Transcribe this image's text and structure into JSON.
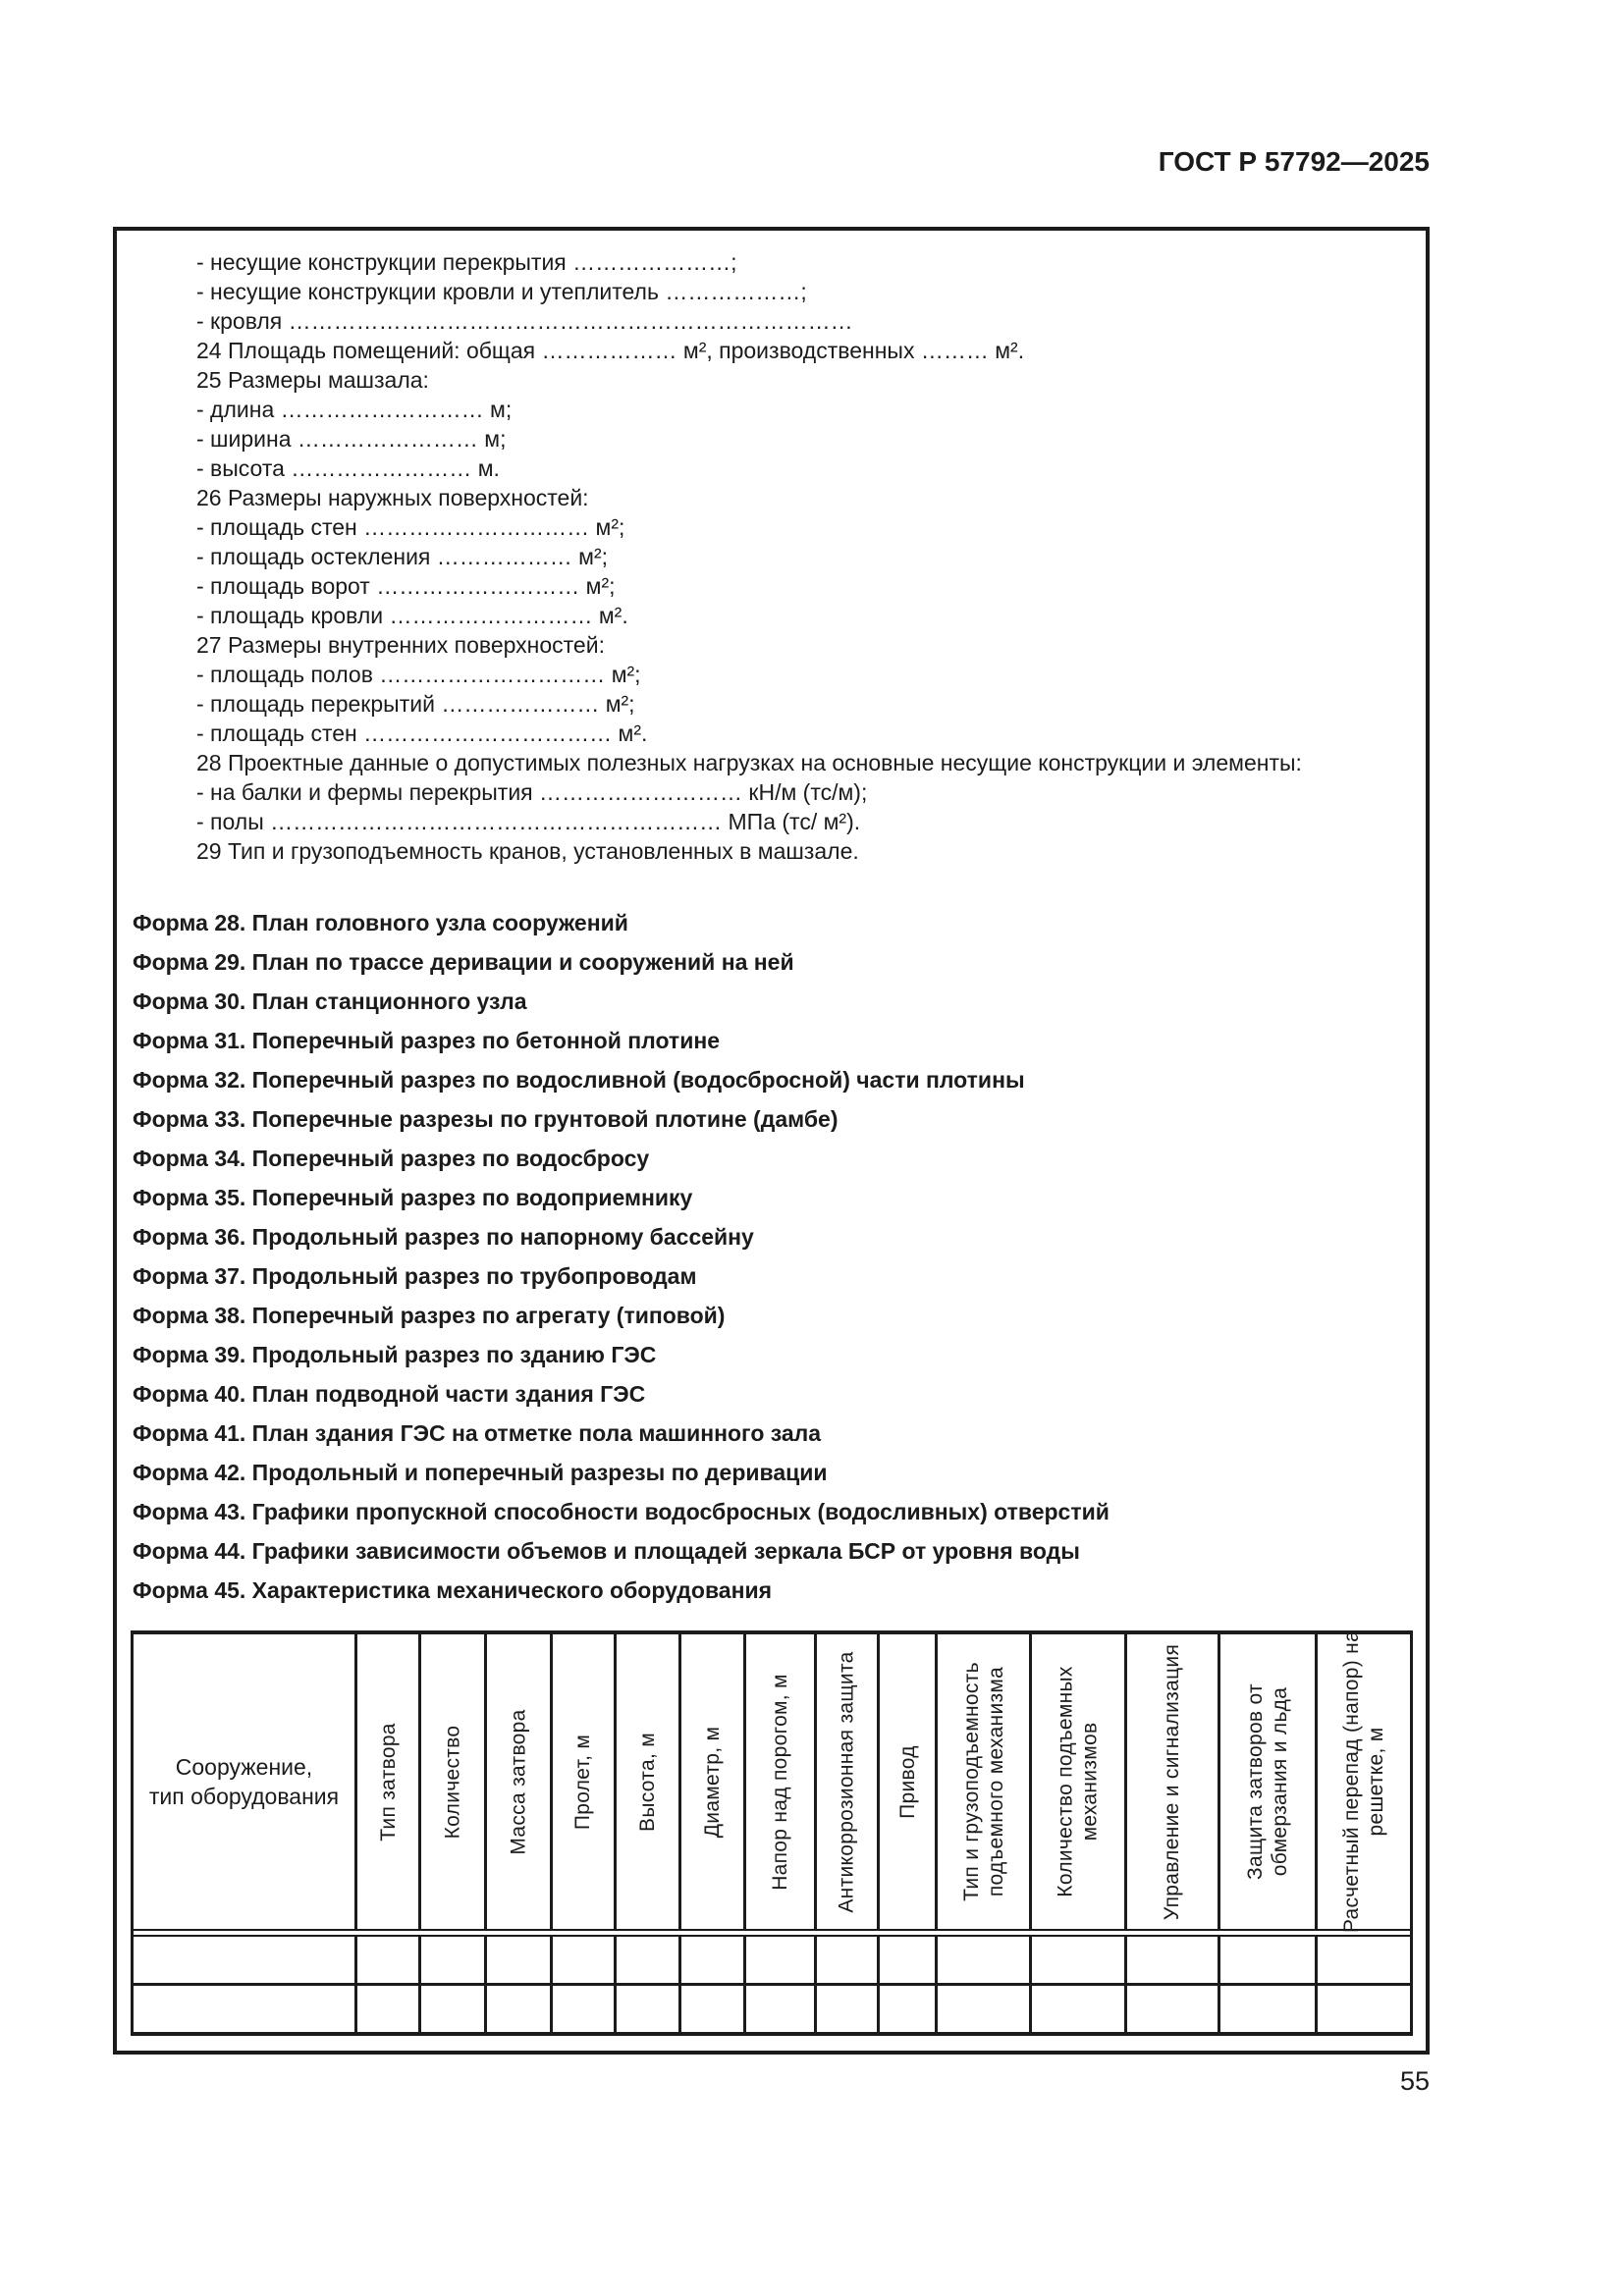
{
  "header": {
    "doc_code": "ГОСТ Р 57792—2025"
  },
  "footer": {
    "page_number": "55"
  },
  "colors": {
    "ink": "#1b1b1b",
    "paper": "#ffffff"
  },
  "content": {
    "spec_lines": [
      "- несущие конструкции перекрытия …………………;",
      "- несущие конструкции кровли и утеплитель ………………;",
      "- кровля …………………………………………………………………",
      "24 Площадь помещений: общая ……………… м², производственных ……… м².",
      "25 Размеры машзала:",
      "- длина ……………………… м;",
      "- ширина …………………… м;",
      "- высота …………………… м.",
      "26 Размеры наружных поверхностей:",
      "- площадь стен ………………………… м²;",
      "- площадь остекления ……………… м²;",
      "- площадь ворот ……………………… м²;",
      "- площадь кровли ……………………… м².",
      "27 Размеры внутренних поверхностей:",
      "- площадь полов ………………………… м²;",
      "- площадь перекрытий ………………… м²;",
      "- площадь стен …………………………… м².",
      "28 Проектные данные о допустимых полезных нагрузках на основные несущие конструкции и элементы:",
      "- на балки и фермы перекрытия ……………………… кН/м (тс/м);",
      "- полы …………………………………………………… МПа (тс/ м²).",
      "29 Тип и грузоподъемность кранов, установленных в машзале."
    ],
    "form_lines": [
      "Форма 28. План головного узла сооружений",
      "Форма 29. План по трассе деривации и сооружений на ней",
      "Форма 30. План станционного узла",
      "Форма 31. Поперечный разрез по бетонной плотине",
      "Форма 32. Поперечный разрез по водосливной (водосбросной) части плотины",
      "Форма 33. Поперечные разрезы по грунтовой плотине (дамбе)",
      "Форма 34. Поперечный разрез по водосбросу",
      "Форма 35. Поперечный разрез по водоприемнику",
      "Форма 36. Продольный разрез по напорному бассейну",
      "Форма 37. Продольный разрез по трубопроводам",
      "Форма 38. Поперечный разрез по агрегату (типовой)",
      "Форма 39. Продольный разрез по зданию ГЭС",
      "Форма 40. План подводной части здания ГЭС",
      "Форма 41. План здания ГЭС на отметке пола машинного зала",
      "Форма 42. Продольный и поперечный разрезы по деривации",
      "Форма 43. Графики пропускной способности водосбросных (водосливных) отверстий",
      "Форма 44. Графики зависимости объемов и площадей зеркала БСР от уровня воды",
      "Форма 45. Характеристика механического оборудования"
    ]
  },
  "table": {
    "first_col_header": "Сооружение,\nтип оборудования",
    "rotated_headers": [
      "Тип затвора",
      "Количество",
      "Масса затвора",
      "Пролет, м",
      "Высота, м",
      "Диаметр, м",
      "Напор над порогом, м",
      "Антикоррозионная защита",
      "Привод",
      "Тип и грузоподъемность\nподъемного механизма",
      "Количество подъемных\nмеханизмов",
      "Управление и сигнализация",
      "Защита затворов от\nобмерзания и льда",
      "Расчетный перепад (напор) на\nрешетке, м"
    ],
    "empty_row_count": 2
  }
}
